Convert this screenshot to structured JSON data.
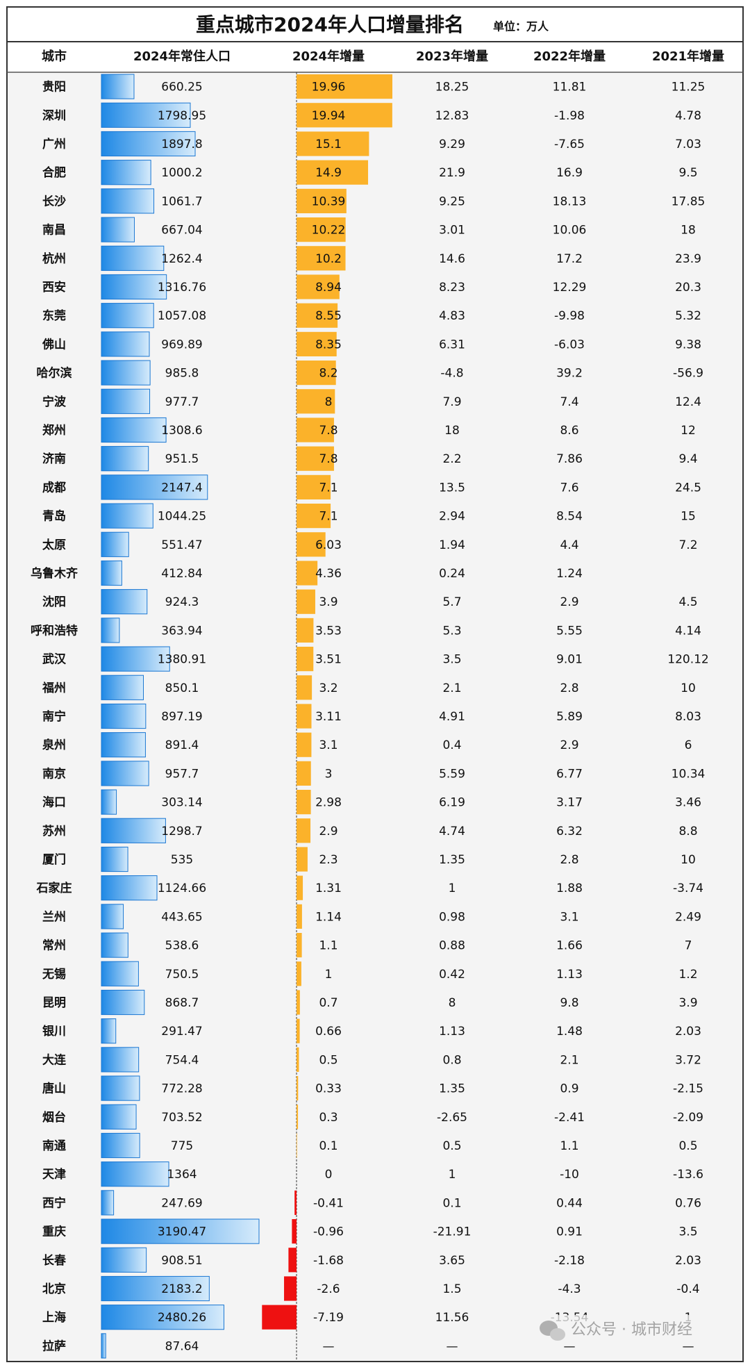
{
  "title": "重点城市2024年人口增量排名",
  "unit": "单位：万人",
  "table": {
    "columns": [
      "城市",
      "2024年常住人口",
      "2024年增量",
      "2023年增量",
      "2022年增量",
      "2021年增量"
    ],
    "rows": [
      [
        "贵阳",
        660.25,
        19.96,
        18.25,
        11.81,
        11.25
      ],
      [
        "深圳",
        1798.95,
        19.94,
        12.83,
        -1.98,
        4.78
      ],
      [
        "广州",
        1897.8,
        15.1,
        9.29,
        -7.65,
        7.03
      ],
      [
        "合肥",
        1000.2,
        14.9,
        21.9,
        16.9,
        9.5
      ],
      [
        "长沙",
        1061.7,
        10.39,
        9.25,
        18.13,
        17.85
      ],
      [
        "南昌",
        667.04,
        10.22,
        3.01,
        10.06,
        18
      ],
      [
        "杭州",
        1262.4,
        10.2,
        14.6,
        17.2,
        23.9
      ],
      [
        "西安",
        1316.76,
        8.94,
        8.23,
        12.29,
        20.3
      ],
      [
        "东莞",
        1057.08,
        8.55,
        4.83,
        -9.98,
        5.32
      ],
      [
        "佛山",
        969.89,
        8.35,
        6.31,
        -6.03,
        9.38
      ],
      [
        "哈尔滨",
        985.8,
        8.2,
        -4.8,
        39.2,
        -56.9
      ],
      [
        "宁波",
        977.7,
        8,
        7.9,
        7.4,
        12.4
      ],
      [
        "郑州",
        1308.6,
        7.8,
        18,
        8.6,
        12
      ],
      [
        "济南",
        951.5,
        7.8,
        2.2,
        7.86,
        9.4
      ],
      [
        "成都",
        2147.4,
        7.1,
        13.5,
        7.6,
        24.5
      ],
      [
        "青岛",
        1044.25,
        7.1,
        2.94,
        8.54,
        15
      ],
      [
        "太原",
        551.47,
        6.03,
        1.94,
        4.4,
        7.2
      ],
      [
        "乌鲁木齐",
        412.84,
        4.36,
        0.24,
        1.24,
        null
      ],
      [
        "沈阳",
        924.3,
        3.9,
        5.7,
        2.9,
        4.5
      ],
      [
        "呼和浩特",
        363.94,
        3.53,
        5.3,
        5.55,
        4.14
      ],
      [
        "武汉",
        1380.91,
        3.51,
        3.5,
        9.01,
        120.12
      ],
      [
        "福州",
        850.1,
        3.2,
        2.1,
        2.8,
        10
      ],
      [
        "南宁",
        897.19,
        3.11,
        4.91,
        5.89,
        8.03
      ],
      [
        "泉州",
        891.4,
        3.1,
        0.4,
        2.9,
        6
      ],
      [
        "南京",
        957.7,
        3,
        5.59,
        6.77,
        10.34
      ],
      [
        "海口",
        303.14,
        2.98,
        6.19,
        3.17,
        3.46
      ],
      [
        "苏州",
        1298.7,
        2.9,
        4.74,
        6.32,
        8.8
      ],
      [
        "厦门",
        535,
        2.3,
        1.35,
        2.8,
        10
      ],
      [
        "石家庄",
        1124.66,
        1.31,
        1,
        1.88,
        -3.74
      ],
      [
        "兰州",
        443.65,
        1.14,
        0.98,
        3.1,
        2.49
      ],
      [
        "常州",
        538.6,
        1.1,
        0.88,
        1.66,
        7
      ],
      [
        "无锡",
        750.5,
        1,
        0.42,
        1.13,
        1.2
      ],
      [
        "昆明",
        868.7,
        0.7,
        8,
        9.8,
        3.9
      ],
      [
        "银川",
        291.47,
        0.66,
        1.13,
        1.48,
        2.03
      ],
      [
        "大连",
        754.4,
        0.5,
        0.8,
        2.1,
        3.72
      ],
      [
        "唐山",
        772.28,
        0.33,
        1.35,
        0.9,
        -2.15
      ],
      [
        "烟台",
        703.52,
        0.3,
        -2.65,
        -2.41,
        -2.09
      ],
      [
        "南通",
        775,
        0.1,
        0.5,
        1.1,
        0.5
      ],
      [
        "天津",
        1364,
        0,
        1,
        -10,
        -13.6
      ],
      [
        "西宁",
        247.69,
        -0.41,
        0.1,
        0.44,
        0.76
      ],
      [
        "重庆",
        3190.47,
        -0.96,
        -21.91,
        0.91,
        3.5
      ],
      [
        "长春",
        908.51,
        -1.68,
        3.65,
        -2.18,
        2.03
      ],
      [
        "北京",
        2183.2,
        -2.6,
        1.5,
        -4.3,
        -0.4
      ],
      [
        "上海",
        2480.26,
        -7.19,
        11.56,
        -13.54,
        1
      ],
      [
        "拉萨",
        87.64,
        "—",
        "—",
        "—",
        "—"
      ]
    ]
  },
  "watermark": "公众号 · 城市财经"
}
